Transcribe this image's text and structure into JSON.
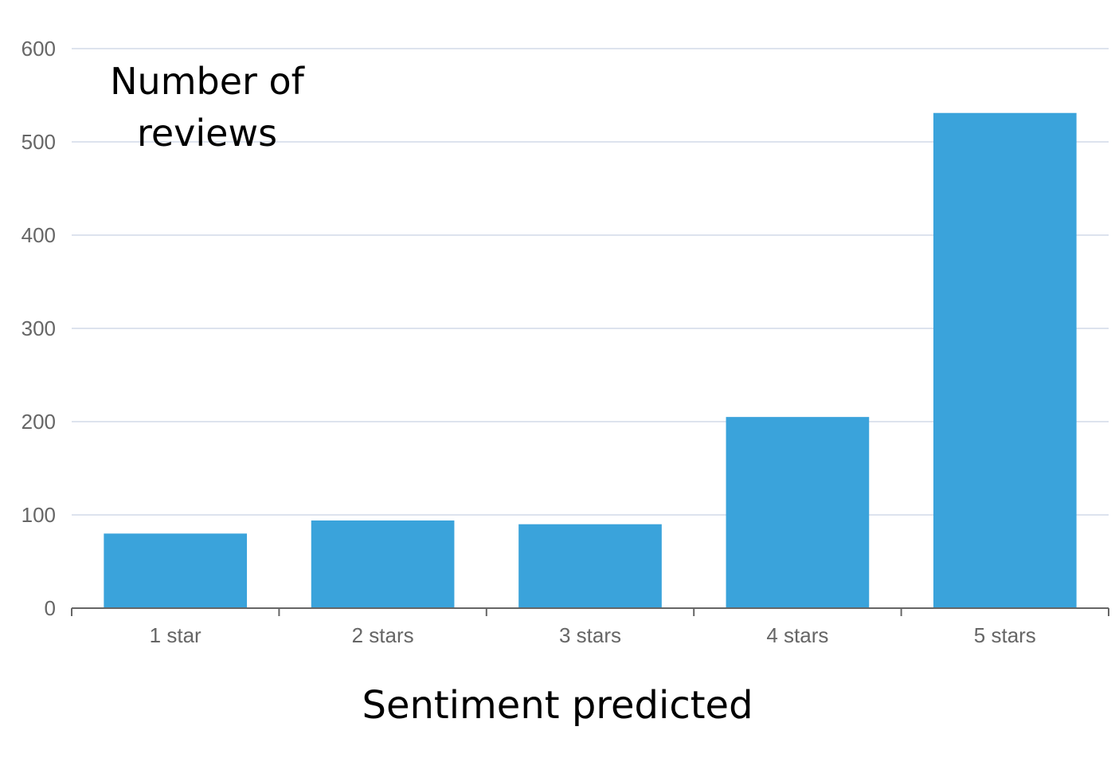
{
  "chart_data": {
    "type": "bar",
    "categories": [
      "1 star",
      "2 stars",
      "3 stars",
      "4 stars",
      "5 stars"
    ],
    "values": [
      80,
      94,
      90,
      205,
      531
    ],
    "xlabel": "Sentiment predicted",
    "ylabel_lines": [
      "Number of",
      "reviews"
    ],
    "ylim": [
      0,
      600
    ],
    "yticks": [
      "0",
      "100",
      "200",
      "300",
      "400",
      "500",
      "600"
    ],
    "grid": true,
    "bar_color": "#3aa3db",
    "grid_color": "#dde3ee",
    "axis_color": "#666666",
    "tick_label_color": "#666666"
  }
}
